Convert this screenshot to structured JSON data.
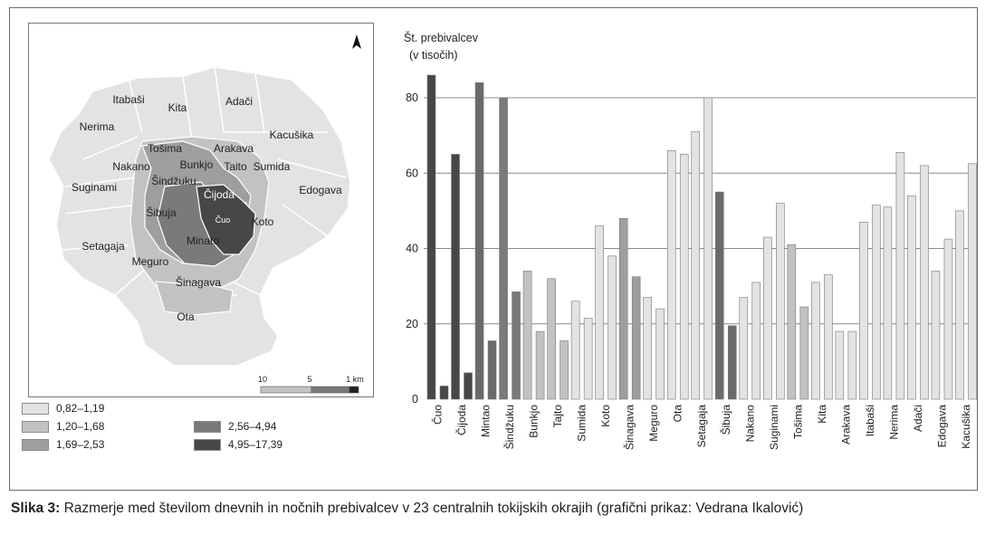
{
  "caption": {
    "label": "Slika 3:",
    "text": "Razmerje med številom dnevnih in nočnih prebivalcev v 23 centralnih tokijskih okrajih (grafični prikaz: Vedrana Ikalović)"
  },
  "map": {
    "north_icon": "north-arrow-icon",
    "scale_labels": [
      "10",
      "5",
      "1 km"
    ],
    "districts": [
      "Itabaši",
      "Kita",
      "Adači",
      "Nerima",
      "Kacušika",
      "Tošima",
      "Arakava",
      "Nakano",
      "Bunkjo",
      "Taito",
      "Sumida",
      "Šindžuku",
      "Čijoda",
      "Suginami",
      "Edogava",
      "Šibuja",
      "Čuo",
      "Koto",
      "Setagaja",
      "Minato",
      "Meguro",
      "Šinagava",
      "Ota"
    ],
    "legend": [
      {
        "label": "0,82–1,19",
        "color": "#e3e3e3"
      },
      {
        "label": "1,20–1,68",
        "color": "#c2c2c2"
      },
      {
        "label": "1,69–2,53",
        "color": "#9e9e9e"
      },
      {
        "label": "2,56–4,94",
        "color": "#7a7a7a"
      },
      {
        "label": "4,95–17,39",
        "color": "#474747"
      }
    ]
  },
  "chart_data": {
    "type": "bar",
    "ylabel": "Št. prebivalcev",
    "ylabel_sub": "(v tisočih)",
    "ylim": [
      0,
      80
    ],
    "yticks": [
      0,
      20,
      40,
      60,
      80
    ],
    "grid": true,
    "categories": [
      "Čuo",
      "Čijoda",
      "Mintao",
      "Šindžuku",
      "Bunkjo",
      "Tajto",
      "Sumida",
      "Koto",
      "Šinagava",
      "Meguro",
      "Ota",
      "Setagaja",
      "Šibuja",
      "Nakano",
      "Suginami",
      "Tošima",
      "Kita",
      "Arakava",
      "Itabaši",
      "Nerima",
      "Adači",
      "Edogava",
      "Kacušika"
    ],
    "series": [
      {
        "values": [
          86,
          65,
          84,
          80,
          34,
          32,
          26,
          46,
          48,
          27,
          66,
          71,
          55,
          27,
          43,
          41,
          31,
          18,
          47,
          51,
          54,
          34,
          50
        ]
      },
      {
        "values": [
          3.5,
          7,
          15.5,
          28.5,
          18,
          15.5,
          21.5,
          38,
          32.5,
          24,
          65,
          80,
          19.5,
          31,
          52,
          24.5,
          33,
          18,
          51.5,
          65.5,
          62,
          42.5,
          62.5
        ]
      }
    ],
    "colors": [
      "#474747",
      "#474747",
      "#6a6a6a",
      "#7a7a7a",
      "#c2c2c2",
      "#c2c2c2",
      "#e3e3e3",
      "#e3e3e3",
      "#9e9e9e",
      "#e3e3e3",
      "#e3e3e3",
      "#e3e3e3",
      "#6a6a6a",
      "#e3e3e3",
      "#e3e3e3",
      "#c2c2c2",
      "#e3e3e3",
      "#e3e3e3",
      "#e3e3e3",
      "#e3e3e3",
      "#e3e3e3",
      "#e3e3e3",
      "#e3e3e3"
    ]
  }
}
